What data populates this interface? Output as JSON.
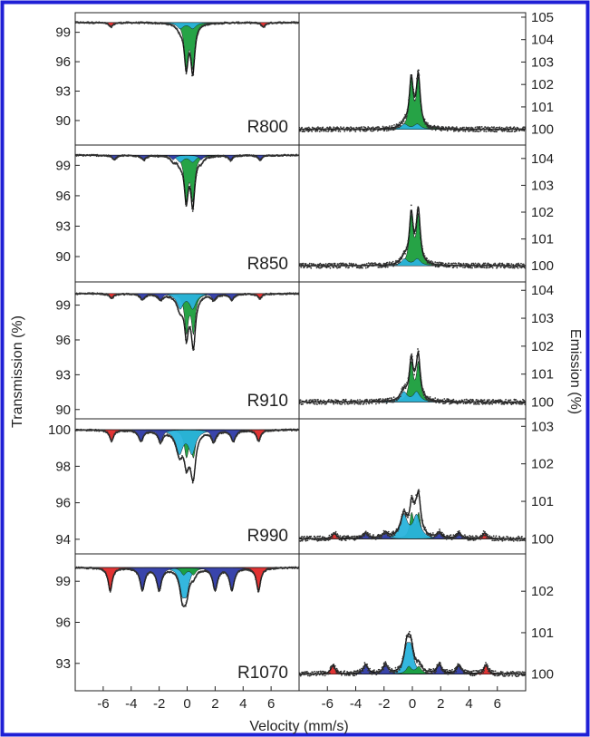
{
  "figure": {
    "xlabel": "Velocity (mm/s)",
    "ylabel_left": "Transmission (%)",
    "ylabel_right": "Emission (%)",
    "x_ticks": [
      -6,
      -4,
      -2,
      0,
      2,
      4,
      6
    ],
    "colors": {
      "border": "#1f1fd6",
      "green": "#1a9e3c",
      "cyan": "#29b3dc",
      "blue": "#2e3aa6",
      "red": "#e02828",
      "fit": "#111111",
      "points": "#333333"
    }
  },
  "chart_data": [
    {
      "type": "line",
      "panel": "transmission",
      "sample": "R800",
      "xlim": [
        -8,
        8
      ],
      "ylim": [
        87.5,
        101
      ],
      "y_ticks": [
        90,
        93,
        96,
        99
      ],
      "baseline": 100,
      "components": [
        {
          "name": "",
          "color": "green",
          "shape": "doublet",
          "center": 0.17,
          "split": 0.47,
          "width": 0.32,
          "depth": 8.7
        },
        {
          "name": "",
          "color": "cyan",
          "shape": "doublet",
          "center": -0.05,
          "split": 0.9,
          "width": 0.55,
          "depth": 1.2
        },
        {
          "name": "",
          "color": "red",
          "shape": "sextet",
          "center": 0.0,
          "lines": [
            -5.45,
            5.45
          ],
          "width": 0.35,
          "depth": 0.45
        }
      ]
    },
    {
      "type": "line",
      "panel": "emission",
      "sample": "R800",
      "xlim": [
        -8,
        8
      ],
      "ylim": [
        99.3,
        105.2
      ],
      "y_ticks": [
        100,
        101,
        102,
        103,
        104,
        105
      ],
      "baseline": 100,
      "components": [
        {
          "name": "",
          "color": "green",
          "shape": "doublet",
          "center": 0.17,
          "split": 0.5,
          "width": 0.32,
          "depth": 4.3
        },
        {
          "name": "",
          "color": "cyan",
          "shape": "doublet",
          "center": -0.1,
          "split": 0.9,
          "width": 0.55,
          "depth": 0.45
        }
      ]
    },
    {
      "type": "line",
      "panel": "transmission",
      "sample": "R850",
      "xlim": [
        -8,
        8
      ],
      "ylim": [
        87.5,
        101
      ],
      "y_ticks": [
        90,
        93,
        96,
        99
      ],
      "baseline": 100,
      "components": [
        {
          "name": "",
          "color": "green",
          "shape": "doublet",
          "center": 0.17,
          "split": 0.47,
          "width": 0.32,
          "depth": 8.4
        },
        {
          "name": "",
          "color": "cyan",
          "shape": "doublet",
          "center": -0.05,
          "split": 0.9,
          "width": 0.55,
          "depth": 1.3
        },
        {
          "name": "",
          "color": "blue",
          "shape": "sextet",
          "center": 0.0,
          "lines": [
            -5.2,
            -3.1,
            -1.0,
            1.0,
            3.1,
            5.2
          ],
          "width": 0.35,
          "depth": 0.45
        }
      ]
    },
    {
      "type": "line",
      "panel": "emission",
      "sample": "R850",
      "xlim": [
        -8,
        8
      ],
      "ylim": [
        99.4,
        104.5
      ],
      "y_ticks": [
        100,
        101,
        102,
        103,
        104
      ],
      "baseline": 100,
      "components": [
        {
          "name": "",
          "color": "green",
          "shape": "doublet",
          "center": 0.17,
          "split": 0.5,
          "width": 0.32,
          "depth": 3.6
        },
        {
          "name": "",
          "color": "cyan",
          "shape": "doublet",
          "center": -0.1,
          "split": 0.9,
          "width": 0.55,
          "depth": 0.5
        }
      ]
    },
    {
      "type": "line",
      "panel": "transmission",
      "sample": "R910",
      "xlim": [
        -8,
        8
      ],
      "ylim": [
        89.2,
        101
      ],
      "y_ticks": [
        90,
        93,
        96,
        99
      ],
      "baseline": 100,
      "components": [
        {
          "name": "",
          "color": "green",
          "shape": "doublet",
          "center": 0.2,
          "split": 0.5,
          "width": 0.32,
          "depth": 6.5
        },
        {
          "name": "",
          "color": "cyan",
          "shape": "doublet",
          "center": -0.05,
          "split": 0.9,
          "width": 0.55,
          "depth": 2.5
        },
        {
          "name": "",
          "color": "blue",
          "shape": "sextet",
          "center": 0.0,
          "lines": [
            -3.2,
            -1.9,
            1.9,
            3.2
          ],
          "width": 0.4,
          "depth": 0.5
        },
        {
          "name": "",
          "color": "red",
          "shape": "sextet",
          "center": 0.0,
          "lines": [
            -5.4,
            5.2
          ],
          "width": 0.35,
          "depth": 0.4
        }
      ]
    },
    {
      "type": "line",
      "panel": "emission",
      "sample": "R910",
      "xlim": [
        -8,
        8
      ],
      "ylim": [
        99.4,
        104.3
      ],
      "y_ticks": [
        100,
        101,
        102,
        103,
        104
      ],
      "baseline": 100,
      "components": [
        {
          "name": "",
          "color": "green",
          "shape": "doublet",
          "center": 0.17,
          "split": 0.5,
          "width": 0.32,
          "depth": 2.7
        },
        {
          "name": "",
          "color": "cyan",
          "shape": "doublet",
          "center": -0.15,
          "split": 0.9,
          "width": 0.55,
          "depth": 0.7
        }
      ]
    },
    {
      "type": "line",
      "panel": "transmission",
      "sample": "R990",
      "xlim": [
        -8,
        8
      ],
      "ylim": [
        93.2,
        100.6
      ],
      "y_ticks": [
        94,
        96,
        98,
        100
      ],
      "baseline": 100,
      "components": [
        {
          "name": "",
          "color": "green",
          "shape": "doublet",
          "center": 0.2,
          "split": 0.5,
          "width": 0.35,
          "depth": 2.8
        },
        {
          "name": "",
          "color": "cyan",
          "shape": "doublet",
          "center": -0.1,
          "split": 0.9,
          "width": 0.6,
          "depth": 2.5
        },
        {
          "name": "",
          "color": "blue",
          "shape": "sextet",
          "center": 0.0,
          "lines": [
            -3.3,
            -1.9,
            1.9,
            3.3
          ],
          "width": 0.4,
          "depth": 0.6
        },
        {
          "name": "",
          "color": "red",
          "shape": "sextet",
          "center": 0.0,
          "lines": [
            -5.4,
            5.1
          ],
          "width": 0.35,
          "depth": 0.6
        }
      ]
    },
    {
      "type": "line",
      "panel": "emission",
      "sample": "R990",
      "xlim": [
        -8,
        8
      ],
      "ylim": [
        99.6,
        103.2
      ],
      "y_ticks": [
        100,
        101,
        102,
        103
      ],
      "baseline": 100,
      "components": [
        {
          "name": "",
          "color": "green",
          "shape": "doublet",
          "center": 0.2,
          "split": 0.5,
          "width": 0.32,
          "depth": 1.3
        },
        {
          "name": "",
          "color": "cyan",
          "shape": "doublet",
          "center": -0.15,
          "split": 0.9,
          "width": 0.6,
          "depth": 1.2
        },
        {
          "name": "",
          "color": "blue",
          "shape": "sextet",
          "center": 0.0,
          "lines": [
            -3.3,
            -1.9,
            1.9,
            3.3
          ],
          "width": 0.4,
          "depth": 0.15
        },
        {
          "name": "",
          "color": "red",
          "shape": "sextet",
          "center": 0.0,
          "lines": [
            -5.5,
            5.1
          ],
          "width": 0.35,
          "depth": 0.15
        }
      ]
    },
    {
      "type": "line",
      "panel": "transmission",
      "sample": "R1070",
      "xlim": [
        -8,
        8
      ],
      "ylim": [
        91,
        101
      ],
      "y_ticks": [
        93,
        96,
        99
      ],
      "baseline": 100,
      "components": [
        {
          "name": "",
          "color": "cyan",
          "shape": "doublet",
          "center": -0.2,
          "split": 0.3,
          "width": 0.45,
          "depth": 3.2
        },
        {
          "name": "",
          "color": "green",
          "shape": "doublet",
          "center": 0.1,
          "split": 0.7,
          "width": 0.45,
          "depth": 1.0
        },
        {
          "name": "",
          "color": "blue",
          "shape": "sextet",
          "center": 0.0,
          "lines": [
            -3.2,
            -2.0,
            2.0,
            3.2
          ],
          "width": 0.4,
          "depth": 1.6
        },
        {
          "name": "",
          "color": "red",
          "shape": "sextet",
          "center": 0.0,
          "lines": [
            -5.5,
            5.1
          ],
          "width": 0.35,
          "depth": 1.7
        }
      ]
    },
    {
      "type": "line",
      "panel": "emission",
      "sample": "R1070",
      "xlim": [
        -8,
        8
      ],
      "ylim": [
        99.6,
        102.9
      ],
      "y_ticks": [
        100,
        101,
        102
      ],
      "baseline": 100,
      "components": [
        {
          "name": "",
          "color": "cyan",
          "shape": "doublet",
          "center": -0.25,
          "split": 0.3,
          "width": 0.45,
          "depth": 1.1
        },
        {
          "name": "",
          "color": "green",
          "shape": "doublet",
          "center": 0.1,
          "split": 0.7,
          "width": 0.45,
          "depth": 0.35
        },
        {
          "name": "",
          "color": "blue",
          "shape": "sextet",
          "center": 0.0,
          "lines": [
            -3.3,
            -1.9,
            1.9,
            3.3
          ],
          "width": 0.4,
          "depth": 0.22
        },
        {
          "name": "",
          "color": "red",
          "shape": "sextet",
          "center": 0.0,
          "lines": [
            -5.6,
            5.2
          ],
          "width": 0.35,
          "depth": 0.22
        }
      ]
    }
  ]
}
